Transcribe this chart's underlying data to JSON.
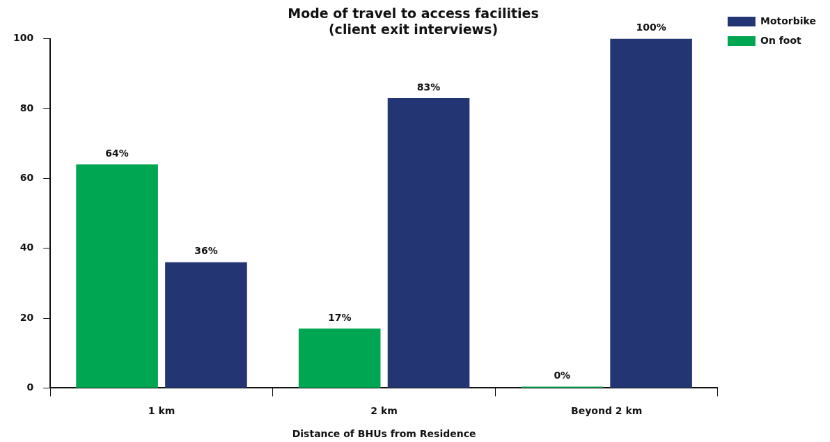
{
  "chart_data": {
    "type": "bar",
    "title": "Mode of travel to access facilities\n(client exit interviews)",
    "xlabel": "Distance of BHUs from Residence",
    "categories": [
      "1 km",
      "2 km",
      "Beyond 2 km"
    ],
    "series": [
      {
        "name": "On foot",
        "color": "#00a651",
        "values": [
          64,
          17,
          0
        ],
        "value_labels": [
          "64%",
          "17%",
          "0%"
        ]
      },
      {
        "name": "Motorbike",
        "color": "#233673",
        "values": [
          36,
          83,
          100
        ],
        "value_labels": [
          "36%",
          "83%",
          "100%"
        ]
      }
    ],
    "ylim": [
      0,
      100
    ],
    "yticks": [
      0,
      20,
      40,
      60,
      80,
      100
    ],
    "grid": false,
    "legend": "top right"
  }
}
